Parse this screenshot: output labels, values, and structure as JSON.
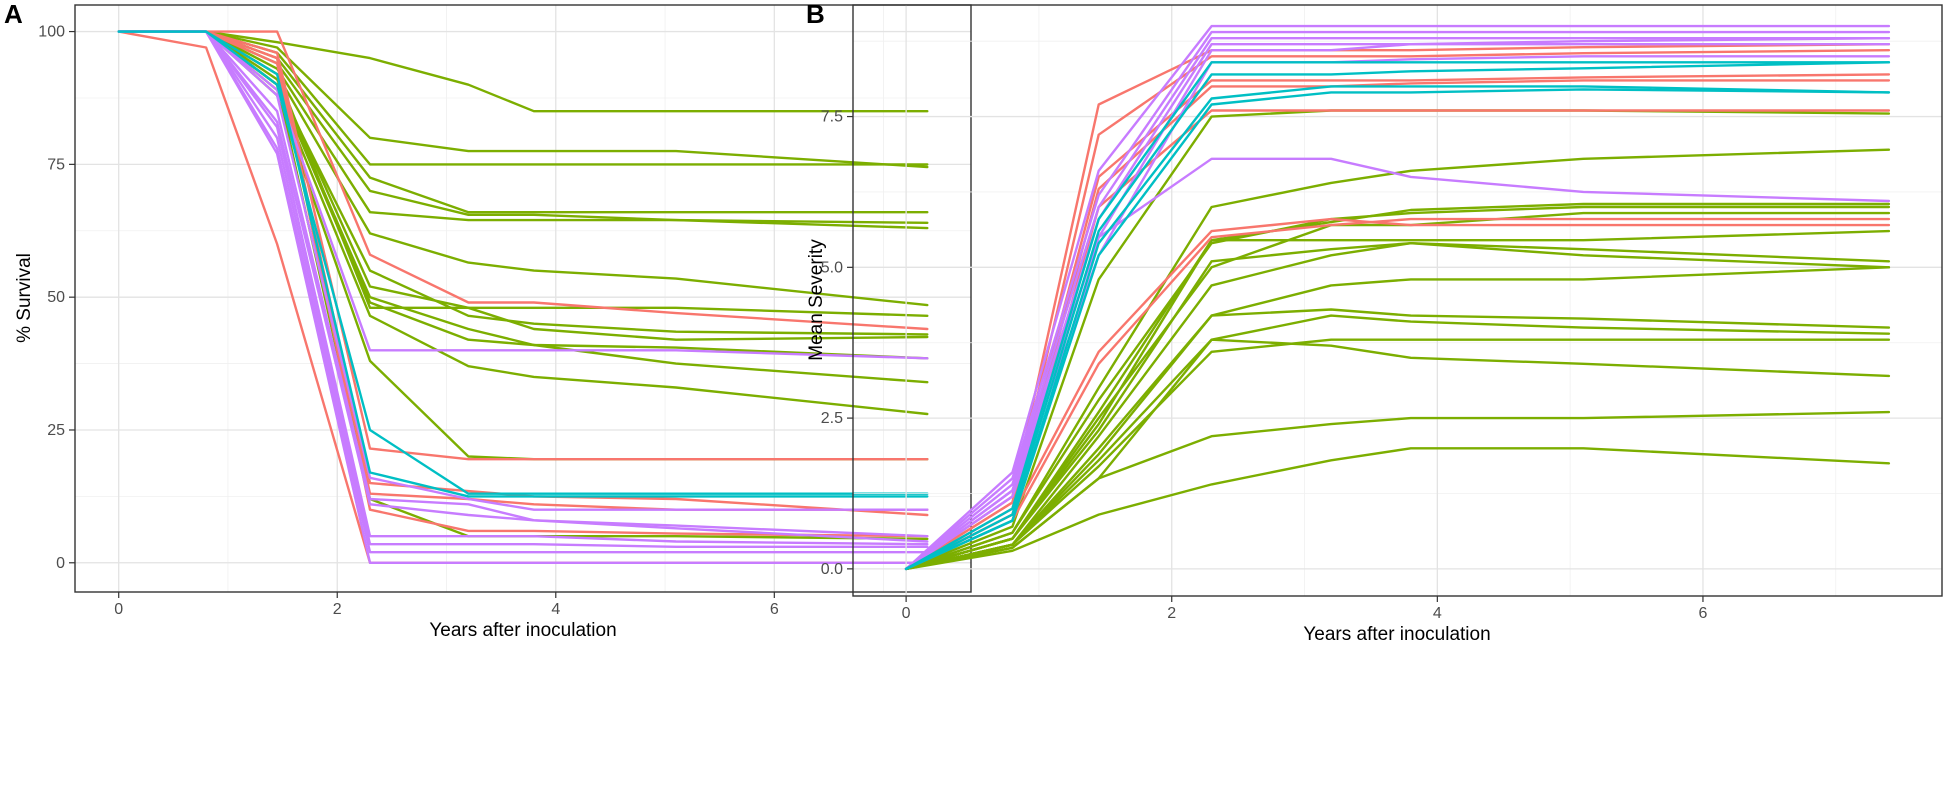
{
  "colors": {
    "red": "#F8766D",
    "green": "#7CAE00",
    "cyan": "#00BFC4",
    "purple": "#C77CFF"
  },
  "chart_data": [
    {
      "type": "line",
      "panel_label": "A",
      "title": "",
      "xlabel": "Years after inoculation",
      "ylabel": "% Survival",
      "xlim": [
        -0.4,
        7.8
      ],
      "ylim": [
        -5.5,
        105
      ],
      "xticks": [
        0,
        2,
        4,
        6
      ],
      "xtick_labels": [
        "0",
        "2",
        "4",
        "6"
      ],
      "yticks": [
        0,
        25,
        50,
        75,
        100
      ],
      "ytick_labels": [
        "0",
        "25",
        "50",
        "75",
        "100"
      ],
      "grid": true,
      "legend": "none",
      "x": [
        0,
        0.8,
        1.45,
        2.3,
        3.2,
        3.8,
        5.1,
        7.4
      ],
      "series": [
        {
          "name": "s1",
          "color": "green",
          "values": [
            100,
            100,
            98,
            95,
            90,
            85,
            85,
            85
          ]
        },
        {
          "name": "s2",
          "color": "green",
          "values": [
            100,
            100,
            97,
            80,
            77.5,
            77.5,
            77.5,
            74.5
          ]
        },
        {
          "name": "s3",
          "color": "green",
          "values": [
            100,
            100,
            96,
            75,
            75,
            75,
            75,
            75
          ]
        },
        {
          "name": "s4",
          "color": "green",
          "values": [
            100,
            100,
            95,
            72.5,
            66,
            66,
            66,
            66
          ]
        },
        {
          "name": "s5",
          "color": "green",
          "values": [
            100,
            100,
            94,
            70,
            65.5,
            65.5,
            64.5,
            63
          ]
        },
        {
          "name": "s6",
          "color": "green",
          "values": [
            100,
            100,
            93,
            66,
            64.5,
            64.5,
            64.5,
            64
          ]
        },
        {
          "name": "s7",
          "color": "green",
          "values": [
            100,
            100,
            92,
            62,
            56.5,
            55,
            53.5,
            48.5
          ]
        },
        {
          "name": "s8",
          "color": "red",
          "values": [
            100,
            100,
            100,
            58,
            49,
            49,
            47,
            44
          ]
        },
        {
          "name": "s9",
          "color": "green",
          "values": [
            100,
            100,
            92,
            48,
            48,
            48,
            48,
            46.5
          ]
        },
        {
          "name": "s10",
          "color": "green",
          "values": [
            100,
            100,
            91,
            52,
            48,
            44,
            42,
            42.5
          ]
        },
        {
          "name": "s11",
          "color": "green",
          "values": [
            100,
            100,
            90,
            55,
            46.5,
            45,
            43.5,
            43
          ]
        },
        {
          "name": "s12",
          "color": "green",
          "values": [
            100,
            100,
            90,
            49,
            42,
            41,
            40.5,
            38.5
          ]
        },
        {
          "name": "s13",
          "color": "purple",
          "values": [
            100,
            100,
            89,
            40,
            40,
            40,
            40,
            38.5
          ]
        },
        {
          "name": "s14",
          "color": "green",
          "values": [
            100,
            100,
            90,
            50,
            44,
            41,
            37.5,
            34
          ]
        },
        {
          "name": "s15",
          "color": "green",
          "values": [
            100,
            100,
            89,
            46.5,
            37,
            35,
            33,
            28
          ]
        },
        {
          "name": "s16",
          "color": "green",
          "values": [
            100,
            100,
            88,
            38,
            20,
            19.5,
            19.5,
            19.5
          ]
        },
        {
          "name": "s17",
          "color": "red",
          "values": [
            100,
            100,
            96,
            21.5,
            19.5,
            19.5,
            19.5,
            19.5
          ]
        },
        {
          "name": "s18",
          "color": "cyan",
          "values": [
            100,
            100,
            90,
            25,
            13,
            13,
            13,
            13
          ]
        },
        {
          "name": "s19",
          "color": "cyan",
          "values": [
            100,
            100,
            92,
            17,
            12.5,
            12.5,
            12.5,
            12.5
          ]
        },
        {
          "name": "s20",
          "color": "red",
          "values": [
            100,
            100,
            95,
            15,
            13.5,
            12.5,
            12,
            9
          ]
        },
        {
          "name": "s21",
          "color": "purple",
          "values": [
            100,
            100,
            88,
            16,
            12,
            10,
            10,
            10
          ]
        },
        {
          "name": "s22",
          "color": "red",
          "values": [
            100,
            100,
            94,
            13,
            12,
            11,
            10,
            10
          ]
        },
        {
          "name": "s23",
          "color": "purple",
          "values": [
            100,
            100,
            85,
            12,
            11,
            8,
            6.5,
            4
          ]
        },
        {
          "name": "s24",
          "color": "purple",
          "values": [
            100,
            100,
            83,
            11,
            9,
            8,
            7,
            5
          ]
        },
        {
          "name": "s25",
          "color": "red",
          "values": [
            100,
            100,
            95,
            10,
            6,
            6,
            5.5,
            5
          ]
        },
        {
          "name": "s26",
          "color": "green",
          "values": [
            100,
            100,
            90,
            12,
            5,
            5,
            5,
            4.5
          ]
        },
        {
          "name": "s27",
          "color": "purple",
          "values": [
            100,
            100,
            82,
            5,
            5,
            5,
            4,
            3.5
          ]
        },
        {
          "name": "s28",
          "color": "purple",
          "values": [
            100,
            100,
            80,
            3.5,
            3.5,
            3.5,
            3,
            3
          ]
        },
        {
          "name": "s29",
          "color": "purple",
          "values": [
            100,
            100,
            78,
            2,
            2,
            2,
            2,
            2
          ]
        },
        {
          "name": "s30",
          "color": "purple",
          "values": [
            100,
            100,
            77,
            0,
            0,
            0,
            0,
            0
          ]
        },
        {
          "name": "s31",
          "color": "red",
          "values": [
            100,
            97,
            60,
            0,
            0,
            0,
            0,
            0
          ]
        }
      ]
    },
    {
      "type": "line",
      "panel_label": "B",
      "title": "",
      "xlabel": "Years after inoculation",
      "ylabel": "Mean Severity",
      "xlim": [
        -0.4,
        7.8
      ],
      "ylim": [
        -0.45,
        9.35
      ],
      "xticks": [
        0,
        2,
        4,
        6
      ],
      "xtick_labels": [
        "0",
        "2",
        "4",
        "6"
      ],
      "yticks": [
        0,
        2.5,
        5,
        7.5
      ],
      "ytick_labels": [
        "0.0",
        "2.5",
        "5.0",
        "7.5"
      ],
      "grid": true,
      "legend": "none",
      "x": [
        0,
        0.8,
        1.45,
        2.3,
        3.2,
        3.8,
        5.1,
        7.4
      ],
      "series": [
        {
          "name": "s1",
          "color": "purple",
          "values": [
            0,
            1.6,
            6.6,
            9.0,
            9.0,
            9.0,
            9.0,
            9.0
          ]
        },
        {
          "name": "s2",
          "color": "purple",
          "values": [
            0,
            1.5,
            6.2,
            8.9,
            8.9,
            8.9,
            8.9,
            8.9
          ]
        },
        {
          "name": "s3",
          "color": "purple",
          "values": [
            0,
            1.4,
            6.0,
            8.8,
            8.8,
            8.8,
            8.8,
            8.8
          ]
        },
        {
          "name": "s4",
          "color": "purple",
          "values": [
            0,
            1.3,
            5.8,
            8.7,
            8.7,
            8.7,
            8.7,
            8.7
          ]
        },
        {
          "name": "s5",
          "color": "red",
          "values": [
            0,
            1.2,
            7.7,
            8.6,
            8.6,
            8.6,
            8.65,
            8.7
          ]
        },
        {
          "name": "s6",
          "color": "red",
          "values": [
            0,
            1.1,
            7.2,
            8.5,
            8.5,
            8.5,
            8.55,
            8.6
          ]
        },
        {
          "name": "s7",
          "color": "purple",
          "values": [
            0,
            1.3,
            5.5,
            8.6,
            8.6,
            8.7,
            8.75,
            8.8
          ]
        },
        {
          "name": "s8",
          "color": "purple",
          "values": [
            0,
            1.2,
            5.2,
            8.4,
            8.4,
            8.45,
            8.5,
            8.5
          ]
        },
        {
          "name": "s9",
          "color": "cyan",
          "values": [
            0,
            1.0,
            5.8,
            8.4,
            8.4,
            8.4,
            8.4,
            8.4
          ]
        },
        {
          "name": "s10",
          "color": "red",
          "values": [
            0,
            1.1,
            6.5,
            8.1,
            8.1,
            8.1,
            8.15,
            8.2
          ]
        },
        {
          "name": "s11",
          "color": "red",
          "values": [
            0,
            1.0,
            6.3,
            8.0,
            8.0,
            8.05,
            8.1,
            8.1
          ]
        },
        {
          "name": "s12",
          "color": "cyan",
          "values": [
            0,
            0.9,
            5.6,
            8.2,
            8.2,
            8.25,
            8.3,
            8.4
          ]
        },
        {
          "name": "s13",
          "color": "cyan",
          "values": [
            0,
            0.8,
            5.4,
            7.8,
            8.0,
            8.0,
            8.0,
            7.9
          ]
        },
        {
          "name": "s14",
          "color": "cyan",
          "values": [
            0,
            0.8,
            5.2,
            7.7,
            7.9,
            7.9,
            7.95,
            7.9
          ]
        },
        {
          "name": "s15",
          "color": "red",
          "values": [
            0,
            0.9,
            6.0,
            7.6,
            7.6,
            7.6,
            7.6,
            7.6
          ]
        },
        {
          "name": "s16",
          "color": "green",
          "values": [
            0,
            0.7,
            4.8,
            7.5,
            7.6,
            7.6,
            7.6,
            7.55
          ]
        },
        {
          "name": "s17",
          "color": "purple",
          "values": [
            0,
            1.2,
            5.5,
            6.8,
            6.8,
            6.5,
            6.25,
            6.1
          ]
        },
        {
          "name": "s18",
          "color": "green",
          "values": [
            0,
            0.6,
            3.0,
            6.0,
            6.4,
            6.6,
            6.8,
            6.95
          ]
        },
        {
          "name": "s19",
          "color": "red",
          "values": [
            0,
            0.9,
            3.6,
            5.6,
            5.8,
            5.7,
            5.7,
            5.7
          ]
        },
        {
          "name": "s20",
          "color": "red",
          "values": [
            0,
            0.8,
            3.4,
            5.5,
            5.7,
            5.8,
            5.8,
            5.8
          ]
        },
        {
          "name": "s21",
          "color": "green",
          "values": [
            0,
            0.6,
            2.8,
            5.4,
            5.8,
            5.9,
            6.0,
            6.0
          ]
        },
        {
          "name": "s22",
          "color": "green",
          "values": [
            0,
            0.5,
            2.6,
            5.45,
            5.75,
            5.95,
            6.05,
            6.05
          ]
        },
        {
          "name": "s23",
          "color": "green",
          "values": [
            0,
            0.5,
            2.5,
            5.0,
            5.7,
            5.7,
            5.9,
            5.9
          ]
        },
        {
          "name": "s24",
          "color": "green",
          "values": [
            0,
            0.5,
            2.4,
            5.45,
            5.45,
            5.45,
            5.45,
            5.6
          ]
        },
        {
          "name": "s25",
          "color": "green",
          "values": [
            0,
            0.5,
            2.3,
            5.1,
            5.3,
            5.4,
            5.3,
            5.1
          ]
        },
        {
          "name": "s26",
          "color": "green",
          "values": [
            0,
            0.4,
            2.2,
            4.7,
            5.2,
            5.4,
            5.2,
            5.0
          ]
        },
        {
          "name": "s27",
          "color": "green",
          "values": [
            0,
            0.4,
            2.0,
            4.2,
            4.7,
            4.8,
            4.8,
            5.0
          ]
        },
        {
          "name": "s28",
          "color": "green",
          "values": [
            0,
            0.4,
            1.9,
            4.2,
            4.3,
            4.2,
            4.15,
            4.0
          ]
        },
        {
          "name": "s29",
          "color": "green",
          "values": [
            0,
            0.4,
            1.8,
            3.8,
            4.2,
            4.1,
            4.0,
            3.9
          ]
        },
        {
          "name": "s30",
          "color": "green",
          "values": [
            0,
            0.4,
            1.7,
            3.6,
            3.8,
            3.8,
            3.8,
            3.8
          ]
        },
        {
          "name": "s31",
          "color": "green",
          "values": [
            0,
            0.35,
            1.5,
            3.8,
            3.7,
            3.5,
            3.4,
            3.2
          ]
        },
        {
          "name": "s32",
          "color": "green",
          "values": [
            0,
            0.35,
            1.5,
            2.2,
            2.4,
            2.5,
            2.5,
            2.6
          ]
        },
        {
          "name": "s33",
          "color": "green",
          "values": [
            0,
            0.3,
            0.9,
            1.4,
            1.8,
            2.0,
            2.0,
            1.75
          ]
        }
      ]
    }
  ]
}
